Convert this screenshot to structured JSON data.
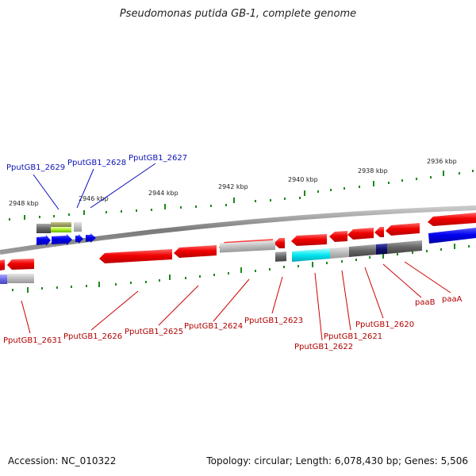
{
  "title": "Pseudomonas putida GB-1, complete genome",
  "footer": {
    "accession": "Accession: NC_010322",
    "topology": "Topology: circular; Length: 6,078,430 bp; Genes: 5,506"
  },
  "scale_ticks": [
    "2948 kbp",
    "2946 kbp",
    "2944 kbp",
    "2942 kbp",
    "2940 kbp",
    "2938 kbp",
    "2936 kbp"
  ],
  "gene_labels_top": [
    "PputGB1_2629",
    "PputGB1_2628",
    "PputGB1_2627"
  ],
  "gene_labels_bottom": [
    "PputGB1_2631",
    "PputGB1_2626",
    "PputGB1_2625",
    "PputGB1_2624",
    "PputGB1_2623",
    "PputGB1_2622",
    "PputGB1_2621",
    "PputGB1_2620",
    "paaB",
    "paaA"
  ],
  "colors": {
    "forward_strand": "#1010e0",
    "reverse_strand": "#e00000",
    "backbone": "#888888",
    "ticks": "#1a8a1a",
    "label_top": "#0b12b8",
    "label_bottom": "#b00000"
  }
}
